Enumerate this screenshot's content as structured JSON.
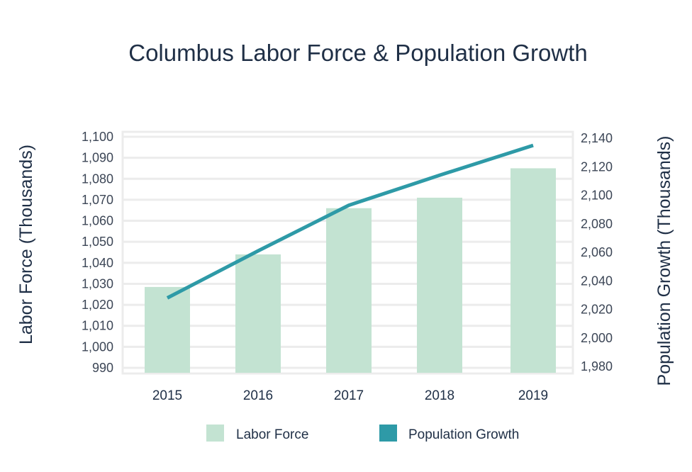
{
  "chart_data": {
    "type": "bar+line",
    "title": "Columbus Labor Force & Population Growth",
    "categories": [
      "2015",
      "2016",
      "2017",
      "2018",
      "2019"
    ],
    "y_left": {
      "label": "Labor Force (Thousands)",
      "range": [
        990,
        1100
      ],
      "ticks": [
        "990",
        "1,000",
        "1,010",
        "1,020",
        "1,030",
        "1,040",
        "1,050",
        "1,060",
        "1,070",
        "1,080",
        "1,090",
        "1,100"
      ]
    },
    "y_right": {
      "label": "Population Growth (Thousands)",
      "range": [
        1980,
        2140
      ],
      "ticks": [
        "1,980",
        "2,000",
        "2,020",
        "2,040",
        "2,060",
        "2,080",
        "2,100",
        "2,120",
        "2,140"
      ]
    },
    "series": [
      {
        "name": "Labor Force",
        "type": "bar",
        "axis": "left",
        "color": "#c3e3d2",
        "values": [
          1028.5,
          1044,
          1066,
          1071,
          1085
        ]
      },
      {
        "name": "Population Growth",
        "type": "line",
        "axis": "right",
        "color": "#2e9aa7",
        "values": [
          2028,
          2061,
          2093,
          2114,
          2135
        ]
      }
    ],
    "grid": true,
    "legend_position": "bottom"
  }
}
